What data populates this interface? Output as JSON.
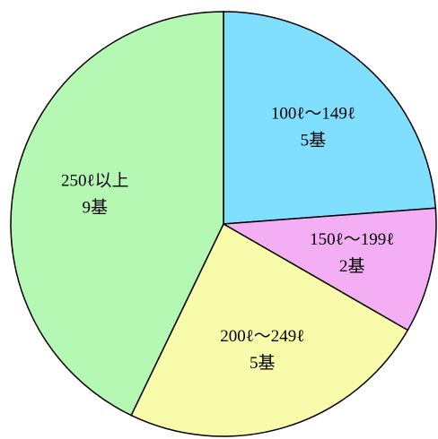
{
  "chart_data": {
    "type": "pie",
    "categories": [
      "100ℓ〜149ℓ",
      "150ℓ〜199ℓ",
      "200ℓ〜249ℓ",
      "250ℓ以上"
    ],
    "values": [
      5,
      2,
      5,
      9
    ],
    "value_labels": [
      "5基",
      "2基",
      "5基",
      "9基"
    ],
    "colors": [
      "#80dfff",
      "#f4aef4",
      "#f8fcaa",
      "#b4f8b4"
    ]
  }
}
